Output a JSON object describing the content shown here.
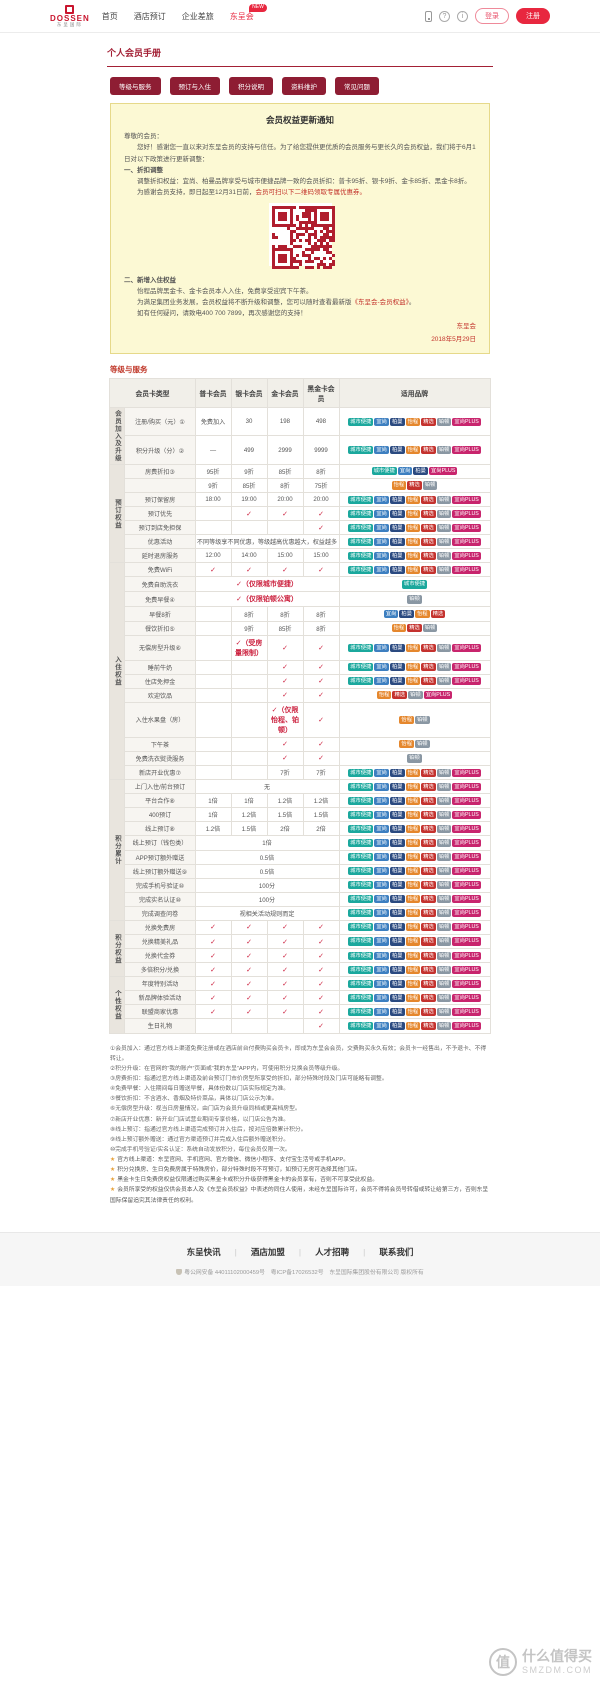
{
  "header": {
    "logo_text": "DOSSEN",
    "logo_sub": "东呈国际",
    "nav": [
      {
        "label": "首页"
      },
      {
        "label": "酒店预订"
      },
      {
        "label": "企业差旅"
      },
      {
        "label": "东呈会",
        "badge": "NEW"
      }
    ],
    "login_label": "登录",
    "register_label": "注册"
  },
  "page_title": "个人会员手册",
  "tabs": [
    "等级与服务",
    "预订与入住",
    "积分说明",
    "资料维护",
    "常见问题"
  ],
  "notice": {
    "title": "会员权益更新通知",
    "paras_top": [
      {
        "parts": [
          {
            "t": "尊敬的会员："
          }
        ]
      },
      {
        "parts": [
          {
            "t": "　　您好！感谢您一直以来对东呈会员的支持与信任。为了给您提供更优质的会员服务与更长久的会员权益，我们将于6月1日对以下政策进行更新调整："
          }
        ]
      },
      {
        "parts": [
          {
            "t": "一、折扣调整",
            "bold": true
          }
        ]
      },
      {
        "parts": [
          {
            "t": "　　调整折扣权益：宜尚、柏曼品牌享受与城市便捷品牌一致的会员折扣：普卡95折、银卡9折、金卡85折、黑金卡8折。"
          }
        ]
      },
      {
        "parts": [
          {
            "t": "　　为感谢会员支持，即日起至12月31日前，"
          },
          {
            "t": "会员可扫以下二维码领取专属优惠券。",
            "red": true
          }
        ]
      }
    ],
    "paras_bottom": [
      {
        "parts": [
          {
            "t": "二、新增入住权益",
            "bold": true
          }
        ]
      },
      {
        "parts": [
          {
            "t": "　　怡程品牌黑金卡、金卡会员本人入住，免费享受迎宾下午茶。"
          }
        ]
      },
      {
        "parts": [
          {
            "t": "　　为满足集团业务发展，会员权益将不断升级和调整，您可以随时查看最新版"
          },
          {
            "t": "《东呈会-会员权益》",
            "red": true
          },
          {
            "t": "。"
          }
        ]
      },
      {
        "parts": [
          {
            "t": "　　如有任何疑问，请致电400 700 7899，再次感谢您的支持！"
          }
        ]
      }
    ],
    "sign": "东呈会",
    "date": "2018年5月29日"
  },
  "section_title": "等级与服务",
  "brands": [
    {
      "label": "城市便捷",
      "color": "#1ba89d"
    },
    {
      "label": "宜尚",
      "color": "#3d7fc0"
    },
    {
      "label": "柏曼",
      "color": "#2b4a80"
    },
    {
      "label": "怡程",
      "color": "#e5872d"
    },
    {
      "label": "精选",
      "color": "#c4322e"
    },
    {
      "label": "铂顿",
      "color": "#8a97a3"
    },
    {
      "label": "宜尚PLUS",
      "color": "#c8256d"
    }
  ],
  "table": {
    "headers": [
      "会员卡类型",
      "普卡会员",
      "银卡会员",
      "金卡会员",
      "黑金卡会员",
      "适用品牌"
    ],
    "groups": [
      {
        "name": "会员加入及升级",
        "rows": [
          {
            "label": "注册/购买（元）①",
            "values": [
              "免费加入",
              "30",
              "198",
              "498"
            ],
            "brands": [
              0,
              1,
              2,
              3,
              4,
              5,
              6
            ]
          },
          {
            "label": "积分升级（分）②",
            "values": [
              "—",
              "499",
              "2999",
              "9999"
            ],
            "brands": [
              0,
              1,
              2,
              3,
              4,
              5,
              6
            ]
          }
        ]
      },
      {
        "name": "预订权益",
        "rows": [
          {
            "label": "房费折扣③",
            "values": [
              "95折",
              "9折",
              "85折",
              "8折"
            ],
            "brands": [
              0,
              1,
              2,
              6
            ]
          },
          {
            "label": "",
            "values": [
              "9折",
              "85折",
              "8折",
              "75折"
            ],
            "brands": [
              3,
              4,
              5
            ]
          },
          {
            "label": "预订保留房",
            "values": [
              "18:00",
              "19:00",
              "20:00",
              "20:00"
            ],
            "brands": [
              0,
              1,
              2,
              3,
              4,
              5,
              6
            ]
          },
          {
            "label": "预订优先",
            "values": [
              "",
              "✓",
              "✓",
              "✓"
            ],
            "brands": [
              0,
              1,
              2,
              3,
              4,
              5,
              6
            ]
          },
          {
            "label": "预订到店免担保",
            "values": [
              "",
              "",
              "",
              "✓"
            ],
            "brands": [
              0,
              1,
              2,
              3,
              4,
              5,
              6
            ]
          },
          {
            "label": "优惠活动",
            "span": "不同等级享不同优惠，等级越高优惠越大，权益越多",
            "brands": [
              0,
              1,
              2,
              3,
              4,
              5,
              6
            ]
          },
          {
            "label": "延时退房服务",
            "values": [
              "12:00",
              "14:00",
              "15:00",
              "15:00"
            ],
            "brands": [
              0,
              1,
              2,
              3,
              4,
              5,
              6
            ]
          }
        ]
      },
      {
        "name": "入住权益",
        "rows": [
          {
            "label": "免费WiFi",
            "values": [
              "✓",
              "✓",
              "✓",
              "✓"
            ],
            "brands": [
              0,
              1,
              2,
              3,
              4,
              5,
              6
            ]
          },
          {
            "label": "免费自助洗衣",
            "span": "✓（仅限城市便捷）",
            "brands": [
              0
            ]
          },
          {
            "label": "免费早餐④",
            "span": "✓（仅限铂顿公寓）",
            "brands": [
              5
            ]
          },
          {
            "label": "早餐8折",
            "values": [
              "",
              "8折",
              "8折",
              "8折"
            ],
            "brands": [
              1,
              2,
              3,
              4
            ]
          },
          {
            "label": "餐饮折扣⑤",
            "values": [
              "",
              "9折",
              "85折",
              "8折"
            ],
            "brands": [
              3,
              4,
              5
            ]
          },
          {
            "label": "无偿房型升级⑥",
            "values": [
              "",
              "✓（受房量限制）",
              "✓",
              "✓"
            ],
            "brands": [
              0,
              1,
              2,
              3,
              4,
              5,
              6
            ]
          },
          {
            "label": "睡前牛奶",
            "values": [
              "",
              "",
              "✓",
              "✓"
            ],
            "brands": [
              0,
              1,
              2,
              3,
              4,
              5,
              6
            ]
          },
          {
            "label": "住店免押金",
            "values": [
              "",
              "",
              "✓",
              "✓"
            ],
            "brands": [
              0,
              1,
              2,
              3,
              4,
              5,
              6
            ]
          },
          {
            "label": "欢迎饮品",
            "values": [
              "",
              "",
              "✓",
              "✓"
            ],
            "brands": [
              3,
              4,
              5,
              6
            ]
          },
          {
            "label": "入住水果盘（房）",
            "values": [
              "",
              "",
              "✓（仅限怡程、铂顿）",
              "✓"
            ],
            "brands": [
              3,
              5
            ]
          },
          {
            "label": "下午茶",
            "values": [
              "",
              "",
              "✓",
              "✓"
            ],
            "brands": [
              3,
              5
            ]
          },
          {
            "label": "免费洗衣熨烫服务",
            "values": [
              "",
              "",
              "✓",
              "✓"
            ],
            "brands": [
              5
            ]
          },
          {
            "label": "新店开业优惠⑦",
            "values": [
              "",
              "",
              "7折",
              "7折"
            ],
            "brands": [
              0,
              1,
              2,
              3,
              4,
              5,
              6
            ]
          }
        ]
      },
      {
        "name": "积分累计",
        "rows": [
          {
            "label": "上门入住/前台预订",
            "span": "无",
            "brands": [
              0,
              1,
              2,
              3,
              4,
              5,
              6
            ]
          },
          {
            "label": "平台合作⑧",
            "values": [
              "1倍",
              "1倍",
              "1.2倍",
              "1.2倍"
            ],
            "brands": [
              0,
              1,
              2,
              3,
              4,
              5,
              6
            ]
          },
          {
            "label": "400预订",
            "values": [
              "1倍",
              "1.2倍",
              "1.5倍",
              "1.5倍"
            ],
            "brands": [
              0,
              1,
              2,
              3,
              4,
              5,
              6
            ]
          },
          {
            "label": "线上预订⑧",
            "values": [
              "1.2倍",
              "1.5倍",
              "2倍",
              "2倍"
            ],
            "brands": [
              0,
              1,
              2,
              3,
              4,
              5,
              6
            ]
          },
          {
            "label": "线上预订（钱包类）",
            "span": "1倍",
            "brands": [
              0,
              1,
              2,
              3,
              4,
              5,
              6
            ]
          },
          {
            "label": "APP预订额外赠送",
            "span": "0.5倍",
            "brands": [
              0,
              1,
              2,
              3,
              4,
              5,
              6
            ]
          },
          {
            "label": "线上预订额外赠送⑨",
            "span": "0.5倍",
            "brands": [
              0,
              1,
              2,
              3,
              4,
              5,
              6
            ]
          },
          {
            "label": "完成手机号验证⑩",
            "span": "100分",
            "brands": [
              0,
              1,
              2,
              3,
              4,
              5,
              6
            ]
          },
          {
            "label": "完成实名认证⑩",
            "span": "100分",
            "brands": [
              0,
              1,
              2,
              3,
              4,
              5,
              6
            ]
          },
          {
            "label": "完成调查问卷",
            "span": "视相关活动规则而定",
            "brands": [
              0,
              1,
              2,
              3,
              4,
              5,
              6
            ]
          }
        ]
      },
      {
        "name": "积分权益",
        "rows": [
          {
            "label": "兑换免费房",
            "values": [
              "✓",
              "✓",
              "✓",
              "✓"
            ],
            "brands": [
              0,
              1,
              2,
              3,
              4,
              5,
              6
            ]
          },
          {
            "label": "兑换精美礼品",
            "values": [
              "✓",
              "✓",
              "✓",
              "✓"
            ],
            "brands": [
              0,
              1,
              2,
              3,
              4,
              5,
              6
            ]
          },
          {
            "label": "兑换代金券",
            "values": [
              "✓",
              "✓",
              "✓",
              "✓"
            ],
            "brands": [
              0,
              1,
              2,
              3,
              4,
              5,
              6
            ]
          },
          {
            "label": "多倍积分/兑换",
            "values": [
              "✓",
              "✓",
              "✓",
              "✓"
            ],
            "brands": [
              0,
              1,
              2,
              3,
              4,
              5,
              6
            ]
          }
        ]
      },
      {
        "name": "个性权益",
        "rows": [
          {
            "label": "年度特别活动",
            "values": [
              "✓",
              "✓",
              "✓",
              "✓"
            ],
            "brands": [
              0,
              1,
              2,
              3,
              4,
              5,
              6
            ]
          },
          {
            "label": "新品牌体验活动",
            "values": [
              "✓",
              "✓",
              "✓",
              "✓"
            ],
            "brands": [
              0,
              1,
              2,
              3,
              4,
              5,
              6
            ]
          },
          {
            "label": "联盟商家优惠",
            "values": [
              "✓",
              "✓",
              "✓",
              "✓"
            ],
            "brands": [
              0,
              1,
              2,
              3,
              4,
              5,
              6
            ]
          },
          {
            "label": "生日礼物",
            "values": [
              "",
              "",
              "",
              "✓"
            ],
            "brands": [
              0,
              1,
              2,
              3,
              4,
              5,
              6
            ]
          }
        ]
      }
    ]
  },
  "footnotes": [
    "①会员加入：通过官方线上渠道免费注册或在酒店前台付费购买会员卡，即成为东呈会会员，交费购买永久有效；会员卡一经售出，不予退卡、不得转让。",
    "②积分升级：在官网的“我的账户”页面或“我的东呈”APP内，可使用积分兑换会员等级升级。",
    "③房费折扣：指通过官方线上渠道及前台预订门市价房型所享受的折扣，部分特殊时段及门店可能略有调整。",
    "④免费早餐：入住期间每日赠送早餐，具体份数以门店实际规定为准。",
    "⑤餐饮折扣：不含酒水、香烟及特价菜品，具体以门店公示为准。",
    "⑥无偿房型升级：视当日房量情况，由门店为会员升级同档或更高档房型。",
    "⑦新店开业优惠：新开业门店试营业期间专享价格，以门店公告为准。",
    "⑧线上预订：指通过官方线上渠道完成预订并入住后，按对应倍数累计积分。",
    "⑨线上预订额外赠送：通过官方渠道预订并完成入住后额外赠送积分。",
    "⑩完成手机号验证/实名认证：系统自动发放积分，每位会员仅限一次。"
  ],
  "stars": [
    "官方线上渠道：东呈官网、手机官网、官方微信、微信小程序、支付宝生活号或手机APP。",
    "积分兑换房、生日免费房属于特殊房价，部分特殊时段不可预订，如预订无房可选择其他门店。",
    "黑金卡生日免费房权益仅限通过购买黑金卡或积分升级获得黑金卡的会员享有，否则不可享受此权益。",
    "会员所享受的权益仅供会员本人及《东呈会员权益》中表述的同住人使用，未经东呈国际许可，会员不得将会员号转借或转让给第三方，否则东呈国际保留追究其法律责任的权利。"
  ],
  "footer": {
    "links": [
      "东呈快讯",
      "酒店加盟",
      "人才招聘",
      "联系我们"
    ],
    "copyright": "粤公网安备 44011102000459号　粤ICP备17026532号　东呈国际集团股份有限公司 版权所有"
  },
  "watermark": {
    "logo": "值",
    "line1": "什么值得买",
    "line2": "SMZDM.COM"
  }
}
